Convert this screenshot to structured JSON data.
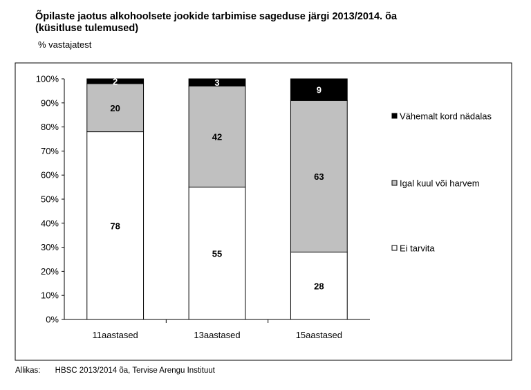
{
  "header": {
    "title_line1": "Õpilaste jaotus alkohoolsete jookide tarbimise sageduse järgi 2013/2014. õa",
    "title_line2": "(küsitluse tulemused)",
    "subtitle": "% vastajatest"
  },
  "chart_data": {
    "type": "bar",
    "stacked": true,
    "percent_axis": true,
    "categories": [
      "11aastased",
      "13aastased",
      "15aastased"
    ],
    "series": [
      {
        "name": "Ei tarvita",
        "values": [
          78,
          55,
          28
        ],
        "color": "#ffffff",
        "label_color": "#000000"
      },
      {
        "name": "Igal kuul või harvem",
        "values": [
          20,
          42,
          63
        ],
        "color": "#c0c0c0",
        "label_color": "#000000"
      },
      {
        "name": "Vähemalt kord nädalas",
        "values": [
          2,
          3,
          9
        ],
        "color": "#000000",
        "label_color": "#ffffff"
      }
    ],
    "yticks": [
      "0%",
      "10%",
      "20%",
      "30%",
      "40%",
      "50%",
      "60%",
      "70%",
      "80%",
      "90%",
      "100%"
    ],
    "ylim": [
      0,
      100
    ],
    "legend_position": "right",
    "grid": false
  },
  "footer": {
    "source_label": "Allikas:",
    "source_text": "HBSC 2013/2014 õa, Tervise Arengu Instituut"
  }
}
